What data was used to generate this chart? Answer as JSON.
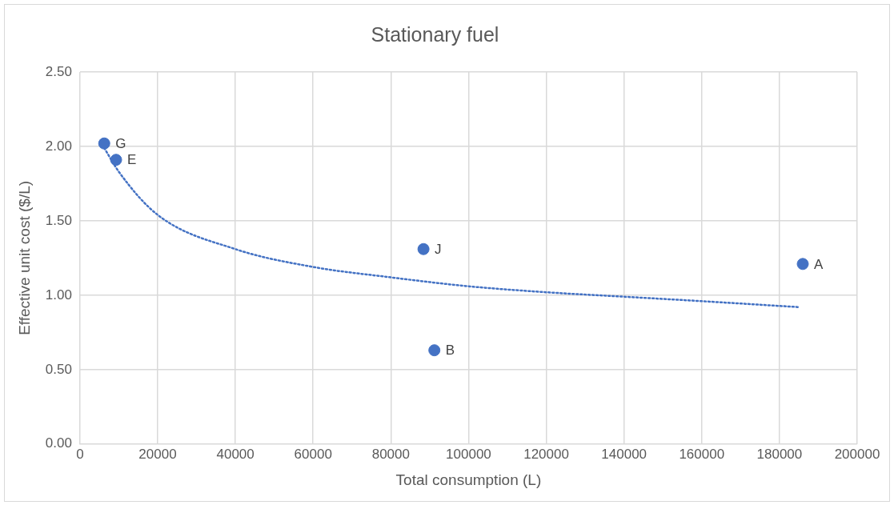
{
  "chart_data": {
    "type": "scatter",
    "title": "Stationary fuel",
    "xlabel": "Total consumption (L)",
    "ylabel": "Effective unit cost ($/L)",
    "xlim": [
      0,
      200000
    ],
    "xticks": [
      0,
      20000,
      40000,
      60000,
      80000,
      100000,
      120000,
      140000,
      160000,
      180000,
      200000
    ],
    "ylim": [
      0,
      2.5
    ],
    "yticks": [
      {
        "value": 0,
        "label": "0.00"
      },
      {
        "value": 0.5,
        "label": "0.50"
      },
      {
        "value": 1,
        "label": "1.00"
      },
      {
        "value": 1.5,
        "label": "1.50"
      },
      {
        "value": 2,
        "label": "2.00"
      },
      {
        "value": 2.5,
        "label": "2.50"
      }
    ],
    "grid": true,
    "legend": false,
    "marker": "circle",
    "series": [
      {
        "color": "#4472c4",
        "x": [
          6250,
          9300,
          88400,
          91200,
          186000
        ],
        "values": [
          2.02,
          1.91,
          1.31,
          0.63,
          1.21
        ]
      },
      {
        "type": "line",
        "color": "#4472c4",
        "marker": "none",
        "line_style": "dotted",
        "x": [
          6250,
          10000,
          20000,
          40000,
          60000,
          80000,
          100000,
          120000,
          140000,
          160000,
          185000
        ],
        "values": [
          1.99,
          1.83,
          1.54,
          1.31,
          1.19,
          1.12,
          1.06,
          1.02,
          0.99,
          0.96,
          0.92
        ]
      }
    ],
    "annotations": [
      {
        "text": "G",
        "x": 6250,
        "y": 2.02
      },
      {
        "text": "E",
        "x": 9300,
        "y": 1.91
      },
      {
        "text": "J",
        "x": 88400,
        "y": 1.31
      },
      {
        "text": "B",
        "x": 91200,
        "y": 0.63
      },
      {
        "text": "A",
        "x": 186000,
        "y": 1.21
      }
    ]
  }
}
